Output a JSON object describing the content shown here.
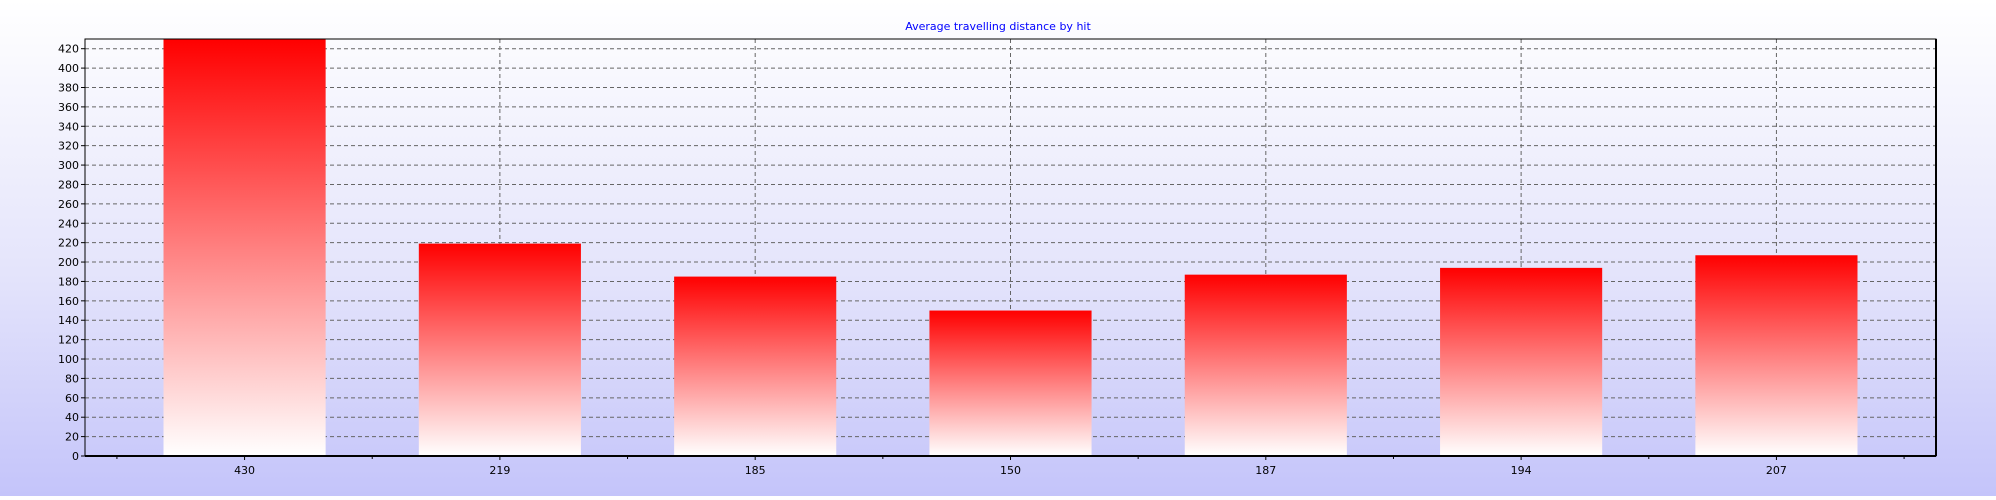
{
  "chart_data": {
    "type": "bar",
    "title": "Average travelling distance by hit",
    "categories": [
      "430",
      "219",
      "185",
      "150",
      "187",
      "194",
      "207"
    ],
    "values": [
      430,
      219,
      185,
      150,
      187,
      194,
      207
    ],
    "xlabel": "",
    "ylabel": "",
    "ylim": [
      0,
      430
    ],
    "y_ticks": [
      0,
      20,
      40,
      60,
      80,
      100,
      120,
      140,
      160,
      180,
      200,
      220,
      240,
      260,
      280,
      300,
      320,
      340,
      360,
      380,
      400,
      420
    ],
    "grid": true,
    "legend": "none",
    "colors": {
      "bar_top": "#ff0000",
      "bar_bottom": "#ffffff",
      "title": "#0000ff",
      "plot_background_top": "#ffffff",
      "plot_background_bottom": "#c4c4fa",
      "grid": "#666666",
      "axis": "#000000"
    }
  }
}
